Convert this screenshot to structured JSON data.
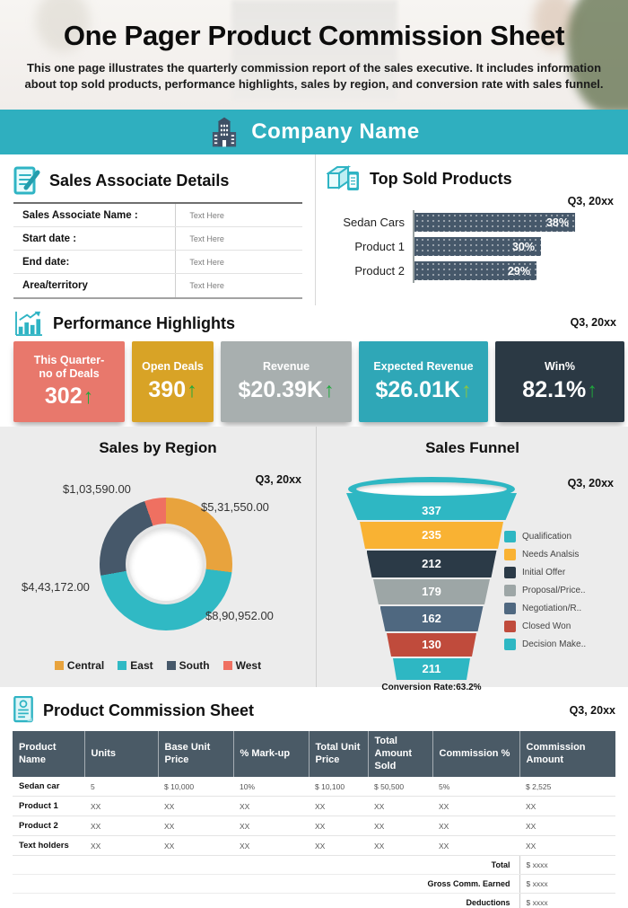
{
  "page": {
    "title": "One Pager Product Commission Sheet",
    "description": "This one page illustrates the quarterly commission report of the sales executive. It includes information about top sold products, performance highlights, sales by region, and conversion rate with sales funnel."
  },
  "company_banner": {
    "name": "Company Name"
  },
  "sales_associate": {
    "title": "Sales Associate Details",
    "rows": [
      {
        "label": "Sales Associate Name :",
        "value": "Text Here"
      },
      {
        "label": "Start date :",
        "value": "Text Here"
      },
      {
        "label": "End date:",
        "value": "Text Here"
      },
      {
        "label": "Area/territory",
        "value": "Text Here"
      }
    ]
  },
  "top_sold_products": {
    "title": "Top Sold Products",
    "period": "Q3, 20xx"
  },
  "performance": {
    "title": "Performance Highlights",
    "period": "Q3, 20xx",
    "cards": [
      {
        "label": "This Quarter-\nno of Deals",
        "value": "302",
        "color": "#E8786C",
        "arrow_color": "#1FA83C"
      },
      {
        "label": "Open Deals",
        "value": "390",
        "color": "#D8A326",
        "arrow_color": "#1FA83C"
      },
      {
        "label": "Revenue",
        "value": "$20.39K",
        "color": "#A8AFAF",
        "arrow_color": "#1FA83C"
      },
      {
        "label": "Expected Revenue",
        "value": "$26.01K",
        "color": "#2FA7B7",
        "arrow_color": "#8DC63F"
      },
      {
        "label": "Win%",
        "value": "82.1%",
        "color": "#2B3944",
        "arrow_color": "#1FA83C"
      }
    ]
  },
  "sales_by_region": {
    "title": "Sales by Region",
    "period": "Q3, 20xx"
  },
  "sales_funnel": {
    "title": "Sales Funnel",
    "period": "Q3, 20xx",
    "conversion_label": "Conversion Rate:63.2%"
  },
  "commission_table": {
    "title": "Product Commission Sheet",
    "period": "Q3, 20xx",
    "columns": [
      "Product Name",
      "Units",
      "Base Unit Price",
      "% Mark-up",
      "Total Unit Price",
      "Total Amount Sold",
      "Commission %",
      "Commission Amount"
    ],
    "rows": [
      [
        "Sedan car",
        "5",
        "$ 10,000",
        "10%",
        "$ 10,100",
        "$ 50,500",
        "5%",
        "$ 2,525"
      ],
      [
        "Product 1",
        "XX",
        "XX",
        "XX",
        "XX",
        "XX",
        "XX",
        "XX"
      ],
      [
        "Product 2",
        "XX",
        "XX",
        "XX",
        "XX",
        "XX",
        "XX",
        "XX"
      ],
      [
        "Text holders",
        "XX",
        "XX",
        "XX",
        "XX",
        "XX",
        "XX",
        "XX"
      ]
    ],
    "summary": [
      {
        "label": "Total",
        "value": "$ xxxx"
      },
      {
        "label": "Gross Comm. Earned",
        "value": "$ xxxx"
      },
      {
        "label": "Deductions",
        "value": "$ xxxx"
      },
      {
        "label": "Amount Payable",
        "value": "$ xxxx"
      }
    ]
  },
  "chart_data": [
    {
      "type": "bar",
      "orientation": "horizontal",
      "title": "Top Sold Products",
      "period": "Q3, 20xx",
      "categories": [
        "Sedan Cars",
        "Product 1",
        "Product 2"
      ],
      "values": [
        38,
        30,
        29
      ],
      "unit": "%",
      "bar_color": "#46586A",
      "xlim": [
        0,
        45
      ]
    },
    {
      "type": "pie",
      "subtype": "donut",
      "title": "Sales by Region",
      "period": "Q3, 20xx",
      "categories": [
        "Central",
        "East",
        "South",
        "West"
      ],
      "values": [
        531550,
        890952,
        443172,
        103590
      ],
      "value_labels": [
        "$5,31,550.00",
        "$8,90,952.00",
        "$4,43,172.00",
        "$1,03,590.00"
      ],
      "colors": [
        "#E8A33D",
        "#30B9C4",
        "#46586A",
        "#EF7061"
      ],
      "legend_position": "bottom"
    },
    {
      "type": "funnel",
      "title": "Sales Funnel",
      "period": "Q3, 20xx",
      "conversion_rate": "63.2%",
      "stages": [
        {
          "label": "Qualification",
          "value": 337,
          "color": "#2EB7C3"
        },
        {
          "label": "Needs Analsis",
          "value": 235,
          "color": "#F9B233"
        },
        {
          "label": "Initial Offer",
          "value": 212,
          "color": "#2B3A47"
        },
        {
          "label": "Proposal/Price..",
          "value": 179,
          "color": "#9DA6A6"
        },
        {
          "label": "Negotiation/R..",
          "value": 162,
          "color": "#4F6880"
        },
        {
          "label": "Closed Won",
          "value": 130,
          "color": "#C04B3C"
        },
        {
          "label": "Decision Make..",
          "value": 211,
          "color": "#2EB7C3"
        }
      ],
      "legend_position": "right"
    }
  ]
}
